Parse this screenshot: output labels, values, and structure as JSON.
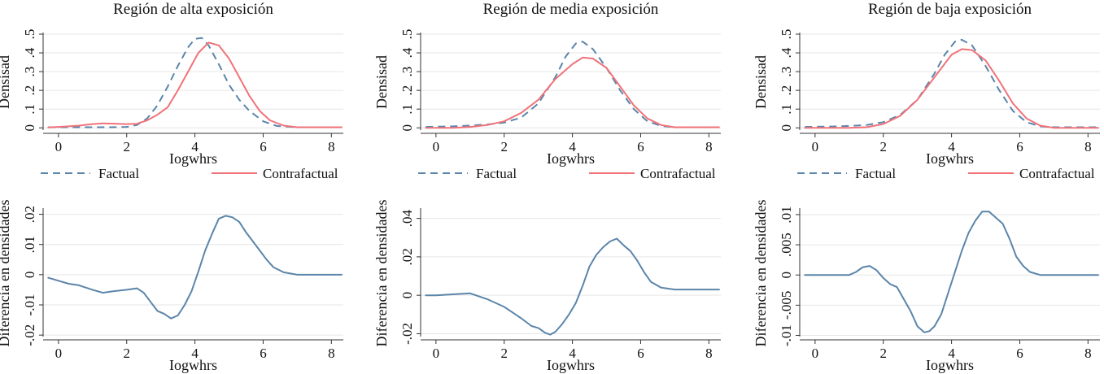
{
  "colors": {
    "factual": "#5b85aa",
    "contrafactual": "#f0737a",
    "diferencia": "#5b85aa",
    "grid": "#e6e6e6",
    "text": "#111111"
  },
  "legend": {
    "factual": "Factual",
    "contrafactual": "Contrafactual"
  },
  "chart_data": [
    {
      "type": "line",
      "title": "Región de alta exposición",
      "xlabel": "Iogwhrs",
      "ylabel": "Densisad",
      "xlim": [
        -0.45,
        8.35
      ],
      "ylim": [
        -0.012,
        0.5
      ],
      "xticks": [
        0,
        2,
        4,
        6,
        8
      ],
      "yticks": [
        0,
        0.1,
        0.2,
        0.3,
        0.4,
        0.5
      ],
      "ytick_labels": [
        "0",
        ".1",
        ".2",
        ".3",
        ".4",
        ".5"
      ],
      "series": [
        {
          "name": "Factual",
          "style": "dashed",
          "x": [
            -0.3,
            0,
            0.5,
            1,
            1.5,
            2,
            2.3,
            2.6,
            2.9,
            3.2,
            3.5,
            3.8,
            4.0,
            4.2,
            4.4,
            4.7,
            5.0,
            5.3,
            5.6,
            6.0,
            6.4,
            7.0,
            8.3
          ],
          "y": [
            0.003,
            0.003,
            0.003,
            0.003,
            0.003,
            0.005,
            0.015,
            0.05,
            0.12,
            0.22,
            0.33,
            0.43,
            0.475,
            0.48,
            0.44,
            0.34,
            0.23,
            0.15,
            0.09,
            0.035,
            0.01,
            0.003,
            0.003
          ]
        },
        {
          "name": "Contrafactual",
          "style": "solid",
          "x": [
            -0.3,
            0.2,
            0.6,
            1.0,
            1.3,
            1.7,
            2.0,
            2.3,
            2.6,
            2.9,
            3.2,
            3.5,
            3.8,
            4.1,
            4.4,
            4.7,
            5.0,
            5.3,
            5.6,
            5.9,
            6.2,
            6.6,
            7.0,
            8.3
          ],
          "y": [
            0.002,
            0.007,
            0.012,
            0.02,
            0.024,
            0.022,
            0.02,
            0.022,
            0.04,
            0.07,
            0.11,
            0.2,
            0.3,
            0.4,
            0.455,
            0.44,
            0.37,
            0.27,
            0.17,
            0.09,
            0.04,
            0.012,
            0.003,
            0.003
          ]
        }
      ]
    },
    {
      "type": "line",
      "title": "Región de media exposición",
      "xlabel": "Iogwhrs",
      "ylabel": "Densisad",
      "xlim": [
        -0.45,
        8.35
      ],
      "ylim": [
        -0.012,
        0.5
      ],
      "xticks": [
        0,
        2,
        4,
        6,
        8
      ],
      "yticks": [
        0,
        0.1,
        0.2,
        0.3,
        0.4,
        0.5
      ],
      "ytick_labels": [
        "0",
        ".1",
        ".2",
        ".3",
        ".4",
        ".5"
      ],
      "series": [
        {
          "name": "Factual",
          "style": "dashed",
          "x": [
            -0.3,
            0.5,
            1.0,
            1.5,
            2.0,
            2.5,
            3.0,
            3.5,
            3.8,
            4.1,
            4.3,
            4.6,
            5.0,
            5.4,
            5.8,
            6.2,
            6.6,
            7.0,
            8.3
          ],
          "y": [
            0.005,
            0.008,
            0.012,
            0.018,
            0.028,
            0.055,
            0.13,
            0.27,
            0.38,
            0.45,
            0.46,
            0.42,
            0.32,
            0.2,
            0.1,
            0.035,
            0.01,
            0.003,
            0.003
          ]
        },
        {
          "name": "Contrafactual",
          "style": "solid",
          "x": [
            -0.3,
            0.5,
            1.0,
            1.5,
            2.0,
            2.5,
            3.0,
            3.5,
            4.0,
            4.3,
            4.6,
            5.0,
            5.4,
            5.8,
            6.2,
            6.6,
            7.0,
            8.3
          ],
          "y": [
            0.0,
            0.0,
            0.005,
            0.015,
            0.035,
            0.08,
            0.15,
            0.26,
            0.34,
            0.375,
            0.37,
            0.32,
            0.22,
            0.12,
            0.05,
            0.015,
            0.003,
            0.003
          ]
        }
      ]
    },
    {
      "type": "line",
      "title": "Región de baja exposición",
      "xlabel": "Iogwhrs",
      "ylabel": "Densisad",
      "xlim": [
        -0.45,
        8.35
      ],
      "ylim": [
        -0.012,
        0.5
      ],
      "xticks": [
        0,
        2,
        4,
        6,
        8
      ],
      "yticks": [
        0,
        0.1,
        0.2,
        0.3,
        0.4,
        0.5
      ],
      "ytick_labels": [
        "0",
        ".1",
        ".2",
        ".3",
        ".4",
        ".5"
      ],
      "series": [
        {
          "name": "Factual",
          "style": "dashed",
          "x": [
            -0.3,
            0.5,
            1.0,
            1.5,
            2.0,
            2.5,
            3.0,
            3.5,
            3.8,
            4.1,
            4.3,
            4.6,
            5.0,
            5.4,
            5.8,
            6.2,
            6.6,
            7.0,
            8.3
          ],
          "y": [
            0.005,
            0.007,
            0.01,
            0.015,
            0.03,
            0.07,
            0.15,
            0.29,
            0.39,
            0.46,
            0.47,
            0.44,
            0.33,
            0.2,
            0.09,
            0.03,
            0.008,
            0.003,
            0.003
          ]
        },
        {
          "name": "Contrafactual",
          "style": "solid",
          "x": [
            -0.3,
            0.5,
            1.0,
            1.5,
            2.0,
            2.5,
            3.0,
            3.5,
            4.0,
            4.3,
            4.6,
            5.0,
            5.4,
            5.8,
            6.2,
            6.6,
            7.0,
            8.3
          ],
          "y": [
            0.0,
            0.0,
            0.0,
            0.003,
            0.02,
            0.065,
            0.15,
            0.27,
            0.39,
            0.42,
            0.415,
            0.36,
            0.25,
            0.13,
            0.05,
            0.012,
            0.0,
            0.0
          ]
        }
      ]
    },
    {
      "type": "line",
      "title": "",
      "xlabel": "Iogwhrs",
      "ylabel": "Diferencia en densidades",
      "xlim": [
        -0.45,
        8.35
      ],
      "ylim": [
        -0.0205,
        0.0215
      ],
      "xticks": [
        0,
        2,
        4,
        6,
        8
      ],
      "yticks": [
        -0.02,
        -0.01,
        0,
        0.01,
        0.02
      ],
      "ytick_labels": [
        "-.02",
        "-.01",
        "0",
        ".01",
        ".02"
      ],
      "series": [
        {
          "name": "Diferencia",
          "style": "solid",
          "x": [
            -0.3,
            0.0,
            0.3,
            0.6,
            1.0,
            1.3,
            1.6,
            2.0,
            2.3,
            2.5,
            2.7,
            2.9,
            3.1,
            3.3,
            3.5,
            3.7,
            3.9,
            4.1,
            4.3,
            4.5,
            4.7,
            4.9,
            5.1,
            5.3,
            5.5,
            5.7,
            5.9,
            6.1,
            6.3,
            6.6,
            7.0,
            8.3
          ],
          "y": [
            -0.001,
            -0.002,
            -0.003,
            -0.0035,
            -0.005,
            -0.006,
            -0.0055,
            -0.005,
            -0.0045,
            -0.006,
            -0.009,
            -0.012,
            -0.013,
            -0.0145,
            -0.0135,
            -0.01,
            -0.0055,
            0.001,
            0.008,
            0.0135,
            0.0185,
            0.0195,
            0.019,
            0.0175,
            0.014,
            0.011,
            0.008,
            0.005,
            0.0025,
            0.0008,
            0.0,
            0.0
          ]
        }
      ]
    },
    {
      "type": "line",
      "title": "",
      "xlabel": "Iogwhrs",
      "ylabel": "Diferencia en densidades",
      "xlim": [
        -0.45,
        8.35
      ],
      "ylim": [
        -0.0215,
        0.0445
      ],
      "xticks": [
        0,
        2,
        4,
        6,
        8
      ],
      "yticks": [
        -0.02,
        0,
        0.02,
        0.04
      ],
      "ytick_labels": [
        "-.02",
        "0",
        ".02",
        ".04"
      ],
      "series": [
        {
          "name": "Diferencia",
          "style": "solid",
          "x": [
            -0.3,
            0.0,
            0.5,
            1.0,
            1.5,
            2.0,
            2.5,
            2.8,
            3.0,
            3.2,
            3.35,
            3.5,
            3.7,
            3.9,
            4.1,
            4.3,
            4.5,
            4.7,
            4.9,
            5.1,
            5.3,
            5.5,
            5.7,
            5.9,
            6.1,
            6.3,
            6.6,
            7.0,
            8.3
          ],
          "y": [
            0.0,
            0.0,
            0.0005,
            0.001,
            -0.002,
            -0.006,
            -0.012,
            -0.016,
            -0.017,
            -0.0195,
            -0.0205,
            -0.019,
            -0.015,
            -0.01,
            -0.004,
            0.005,
            0.015,
            0.021,
            0.025,
            0.028,
            0.0295,
            0.026,
            0.023,
            0.018,
            0.012,
            0.007,
            0.004,
            0.003,
            0.003
          ]
        }
      ]
    },
    {
      "type": "line",
      "title": "",
      "xlabel": "Iogwhrs",
      "ylabel": "Diferencia en densidades",
      "xlim": [
        -0.45,
        8.35
      ],
      "ylim": [
        -0.0102,
        0.0108
      ],
      "xticks": [
        0,
        2,
        4,
        6,
        8
      ],
      "yticks": [
        -0.01,
        -0.005,
        0,
        0.005,
        0.01
      ],
      "ytick_labels": [
        "-.01",
        "-.005",
        "0",
        ".005",
        ".01"
      ],
      "series": [
        {
          "name": "Diferencia",
          "style": "solid",
          "x": [
            -0.3,
            0.5,
            1.0,
            1.2,
            1.4,
            1.6,
            1.8,
            2.0,
            2.2,
            2.4,
            2.6,
            2.8,
            3.0,
            3.2,
            3.35,
            3.5,
            3.7,
            3.9,
            4.1,
            4.3,
            4.5,
            4.7,
            4.9,
            5.1,
            5.3,
            5.5,
            5.7,
            5.9,
            6.1,
            6.3,
            6.6,
            7.0,
            8.3
          ],
          "y": [
            0.0,
            0.0,
            0.0,
            0.0005,
            0.0013,
            0.0015,
            0.0008,
            -0.0005,
            -0.0015,
            -0.002,
            -0.004,
            -0.006,
            -0.0085,
            -0.0095,
            -0.0093,
            -0.0085,
            -0.0065,
            -0.003,
            0.0005,
            0.004,
            0.007,
            0.009,
            0.0105,
            0.0105,
            0.0095,
            0.0085,
            0.006,
            0.003,
            0.0015,
            0.0005,
            0.0,
            0.0,
            0.0
          ]
        }
      ]
    }
  ]
}
